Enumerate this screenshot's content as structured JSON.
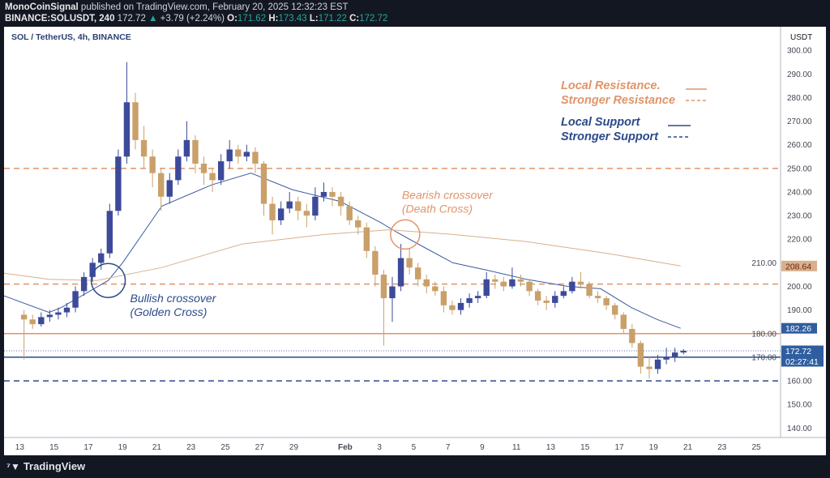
{
  "header": {
    "author": "MonoCoinSignal",
    "published": "published on TradingView.com, February 20, 2025 12:32:23 EST",
    "symbol": "BINANCE:SOLUSDT, 240",
    "last": "172.72",
    "change": "+3.79 (+2.24%)",
    "o_label": "O:",
    "o": "171.62",
    "h_label": "H:",
    "h": "173.43",
    "l_label": "L:",
    "l": "171.22",
    "c_label": "C:",
    "c": "172.72"
  },
  "footer": {
    "brand": "TradingView"
  },
  "colors": {
    "up": "#3d4a9a",
    "down": "#c9a06a",
    "ma_fast": "#3b5ba0",
    "ma_slow": "#d9b08c",
    "resistance": "#e0956a",
    "support": "#2c4a8a"
  },
  "chart_data": {
    "type": "candlestick",
    "title": "SOL / TetherUS, 4h, BINANCE",
    "currency": "USDT",
    "ylim": [
      136,
      310
    ],
    "xlim": [
      "2025-01-12 02:00",
      "2025-02-26 10:00"
    ],
    "yticks": [
      "300.00",
      "290.00",
      "280.00",
      "270.00",
      "260.00",
      "250.00",
      "240.00",
      "230.00",
      "220.00",
      "210.00",
      "200.00",
      "190.00",
      "180.00",
      "170.00",
      "160.00",
      "150.00",
      "140.00"
    ],
    "xticks": [
      {
        "t": "2025-01-13",
        "label": "13"
      },
      {
        "t": "2025-01-15",
        "label": "15"
      },
      {
        "t": "2025-01-17",
        "label": "17"
      },
      {
        "t": "2025-01-19",
        "label": "19"
      },
      {
        "t": "2025-01-21",
        "label": "21"
      },
      {
        "t": "2025-01-23",
        "label": "23"
      },
      {
        "t": "2025-01-25",
        "label": "25"
      },
      {
        "t": "2025-01-27",
        "label": "27"
      },
      {
        "t": "2025-01-29",
        "label": "29"
      },
      {
        "t": "2025-02-01",
        "label": "Feb"
      },
      {
        "t": "2025-02-03",
        "label": "3"
      },
      {
        "t": "2025-02-05",
        "label": "5"
      },
      {
        "t": "2025-02-07",
        "label": "7"
      },
      {
        "t": "2025-02-09",
        "label": "9"
      },
      {
        "t": "2025-02-11",
        "label": "11"
      },
      {
        "t": "2025-02-13",
        "label": "13"
      },
      {
        "t": "2025-02-15",
        "label": "15"
      },
      {
        "t": "2025-02-17",
        "label": "17"
      },
      {
        "t": "2025-02-19",
        "label": "19"
      },
      {
        "t": "2025-02-21",
        "label": "21"
      },
      {
        "t": "2025-02-23",
        "label": "23"
      },
      {
        "t": "2025-02-25",
        "label": "25"
      }
    ],
    "candles_start": "2025-01-13 00:00",
    "candles_interval_hours": 12,
    "candles_ohlc": [
      [
        188,
        190,
        169,
        186
      ],
      [
        186,
        188,
        182,
        184
      ],
      [
        184,
        189,
        183,
        187
      ],
      [
        187,
        190,
        185,
        188
      ],
      [
        188,
        191,
        186,
        189
      ],
      [
        189,
        193,
        187,
        191
      ],
      [
        191,
        200,
        189,
        198
      ],
      [
        198,
        206,
        196,
        204
      ],
      [
        204,
        212,
        202,
        210
      ],
      [
        210,
        216,
        207,
        214
      ],
      [
        214,
        235,
        212,
        232
      ],
      [
        232,
        258,
        230,
        255
      ],
      [
        255,
        295,
        252,
        278
      ],
      [
        278,
        282,
        258,
        262
      ],
      [
        262,
        268,
        250,
        255
      ],
      [
        255,
        258,
        242,
        248
      ],
      [
        248,
        250,
        232,
        238
      ],
      [
        238,
        248,
        235,
        245
      ],
      [
        245,
        258,
        243,
        255
      ],
      [
        255,
        270,
        253,
        262
      ],
      [
        262,
        264,
        248,
        252
      ],
      [
        252,
        255,
        243,
        248
      ],
      [
        248,
        250,
        240,
        245
      ],
      [
        245,
        256,
        243,
        253
      ],
      [
        253,
        262,
        250,
        258
      ],
      [
        258,
        260,
        252,
        255
      ],
      [
        255,
        260,
        253,
        257
      ],
      [
        257,
        259,
        248,
        252
      ],
      [
        252,
        253,
        230,
        235
      ],
      [
        235,
        238,
        222,
        228
      ],
      [
        228,
        236,
        226,
        233
      ],
      [
        233,
        240,
        231,
        236
      ],
      [
        236,
        238,
        228,
        232
      ],
      [
        232,
        235,
        225,
        230
      ],
      [
        230,
        242,
        228,
        238
      ],
      [
        238,
        244,
        236,
        240
      ],
      [
        240,
        242,
        234,
        238
      ],
      [
        238,
        240,
        230,
        234
      ],
      [
        234,
        236,
        226,
        228
      ],
      [
        228,
        230,
        222,
        225
      ],
      [
        225,
        227,
        212,
        215
      ],
      [
        215,
        217,
        200,
        205
      ],
      [
        205,
        207,
        175,
        195
      ],
      [
        195,
        204,
        185,
        200
      ],
      [
        200,
        218,
        198,
        212
      ],
      [
        212,
        216,
        205,
        208
      ],
      [
        208,
        210,
        200,
        203
      ],
      [
        203,
        205,
        197,
        200
      ],
      [
        200,
        202,
        196,
        198
      ],
      [
        198,
        200,
        189,
        192
      ],
      [
        192,
        194,
        188,
        190
      ],
      [
        190,
        195,
        188,
        193
      ],
      [
        193,
        197,
        191,
        195
      ],
      [
        195,
        198,
        193,
        196
      ],
      [
        196,
        206,
        195,
        203
      ],
      [
        203,
        205,
        199,
        202
      ],
      [
        202,
        204,
        198,
        200
      ],
      [
        200,
        208,
        199,
        203
      ],
      [
        203,
        205,
        200,
        202
      ],
      [
        202,
        203,
        196,
        198
      ],
      [
        198,
        199,
        192,
        194
      ],
      [
        194,
        196,
        190,
        193
      ],
      [
        193,
        198,
        191,
        196
      ],
      [
        196,
        200,
        195,
        198
      ],
      [
        198,
        204,
        197,
        202
      ],
      [
        202,
        206,
        199,
        201
      ],
      [
        201,
        202,
        195,
        196
      ],
      [
        196,
        198,
        193,
        195
      ],
      [
        195,
        196,
        190,
        192
      ],
      [
        192,
        193,
        186,
        188
      ],
      [
        188,
        189,
        180,
        182
      ],
      [
        182,
        184,
        174,
        176
      ],
      [
        176,
        177,
        163,
        166
      ],
      [
        166,
        170,
        161,
        165
      ],
      [
        165,
        171,
        163,
        169
      ],
      [
        169,
        174,
        167,
        170
      ],
      [
        170,
        174,
        168,
        172
      ],
      [
        172,
        173.43,
        171.22,
        172.72
      ]
    ],
    "moving_averages": [
      {
        "role": "fast",
        "last": "182.26",
        "points": [
          [
            "2025-01-12 02:00",
            196
          ],
          [
            "2025-01-14 17:00",
            189
          ],
          [
            "2025-01-15 10:00",
            191
          ],
          [
            "2025-01-18 04:00",
            202.5
          ],
          [
            "2025-01-19 00:00",
            210
          ],
          [
            "2025-01-21 07:00",
            234
          ],
          [
            "2025-01-24 05:00",
            243
          ],
          [
            "2025-01-26 12:00",
            248
          ],
          [
            "2025-01-28 22:00",
            241
          ],
          [
            "2025-01-31 17:00",
            236
          ],
          [
            "2025-02-03 02:00",
            227
          ],
          [
            "2025-02-04 00:00",
            223
          ],
          [
            "2025-02-05 12:00",
            217
          ],
          [
            "2025-02-07 07:00",
            210
          ],
          [
            "2025-02-09 05:00",
            207
          ],
          [
            "2025-02-11 14:00",
            203
          ],
          [
            "2025-02-14 00:00",
            200
          ],
          [
            "2025-02-15 22:00",
            199
          ],
          [
            "2025-02-17 17:00",
            191
          ],
          [
            "2025-02-19 05:00",
            186
          ],
          [
            "2025-02-20 14:00",
            182.26
          ]
        ]
      },
      {
        "role": "slow",
        "last": "208.64",
        "points": [
          [
            "2025-01-12 02:00",
            205.6
          ],
          [
            "2025-01-14 17:00",
            203
          ],
          [
            "2025-01-17 12:00",
            202.5
          ],
          [
            "2025-01-21 07:00",
            208
          ],
          [
            "2025-01-26 00:00",
            218
          ],
          [
            "2025-01-30 19:00",
            222
          ],
          [
            "2025-02-03 14:00",
            224
          ],
          [
            "2025-02-07 07:00",
            222
          ],
          [
            "2025-02-11 14:00",
            219
          ],
          [
            "2025-02-16 07:00",
            214
          ],
          [
            "2025-02-20 14:00",
            208.64
          ]
        ]
      }
    ],
    "levels": [
      {
        "price": 250,
        "kind": "stronger-resistance",
        "style": "dashed"
      },
      {
        "price": 201,
        "kind": "stronger-resistance",
        "style": "dashed"
      },
      {
        "price": 180,
        "kind": "local-resistance",
        "style": "solid"
      },
      {
        "price": 170,
        "kind": "local-support",
        "style": "solid"
      },
      {
        "price": 160,
        "kind": "stronger-support",
        "style": "dashed"
      }
    ],
    "current_price": {
      "value": 172.72,
      "label": "172.72",
      "countdown": "02:27:41"
    },
    "annotations": [
      {
        "line1": "Bullish crossover",
        "line2": "(Golden Cross)",
        "t": "2025-01-18 04:00",
        "price": 202.5,
        "color": "#2c4a8a"
      },
      {
        "line1": "Bearish crossover",
        "line2": "(Death Cross)",
        "t": "2025-02-04 12:00",
        "price": 222,
        "color": "#e0956a"
      }
    ],
    "legend": {
      "local_resistance": "Local Resistance.",
      "stronger_resistance": "Stronger Resistance",
      "local_support": "Local Support",
      "stronger_support": "Stronger Support"
    }
  }
}
